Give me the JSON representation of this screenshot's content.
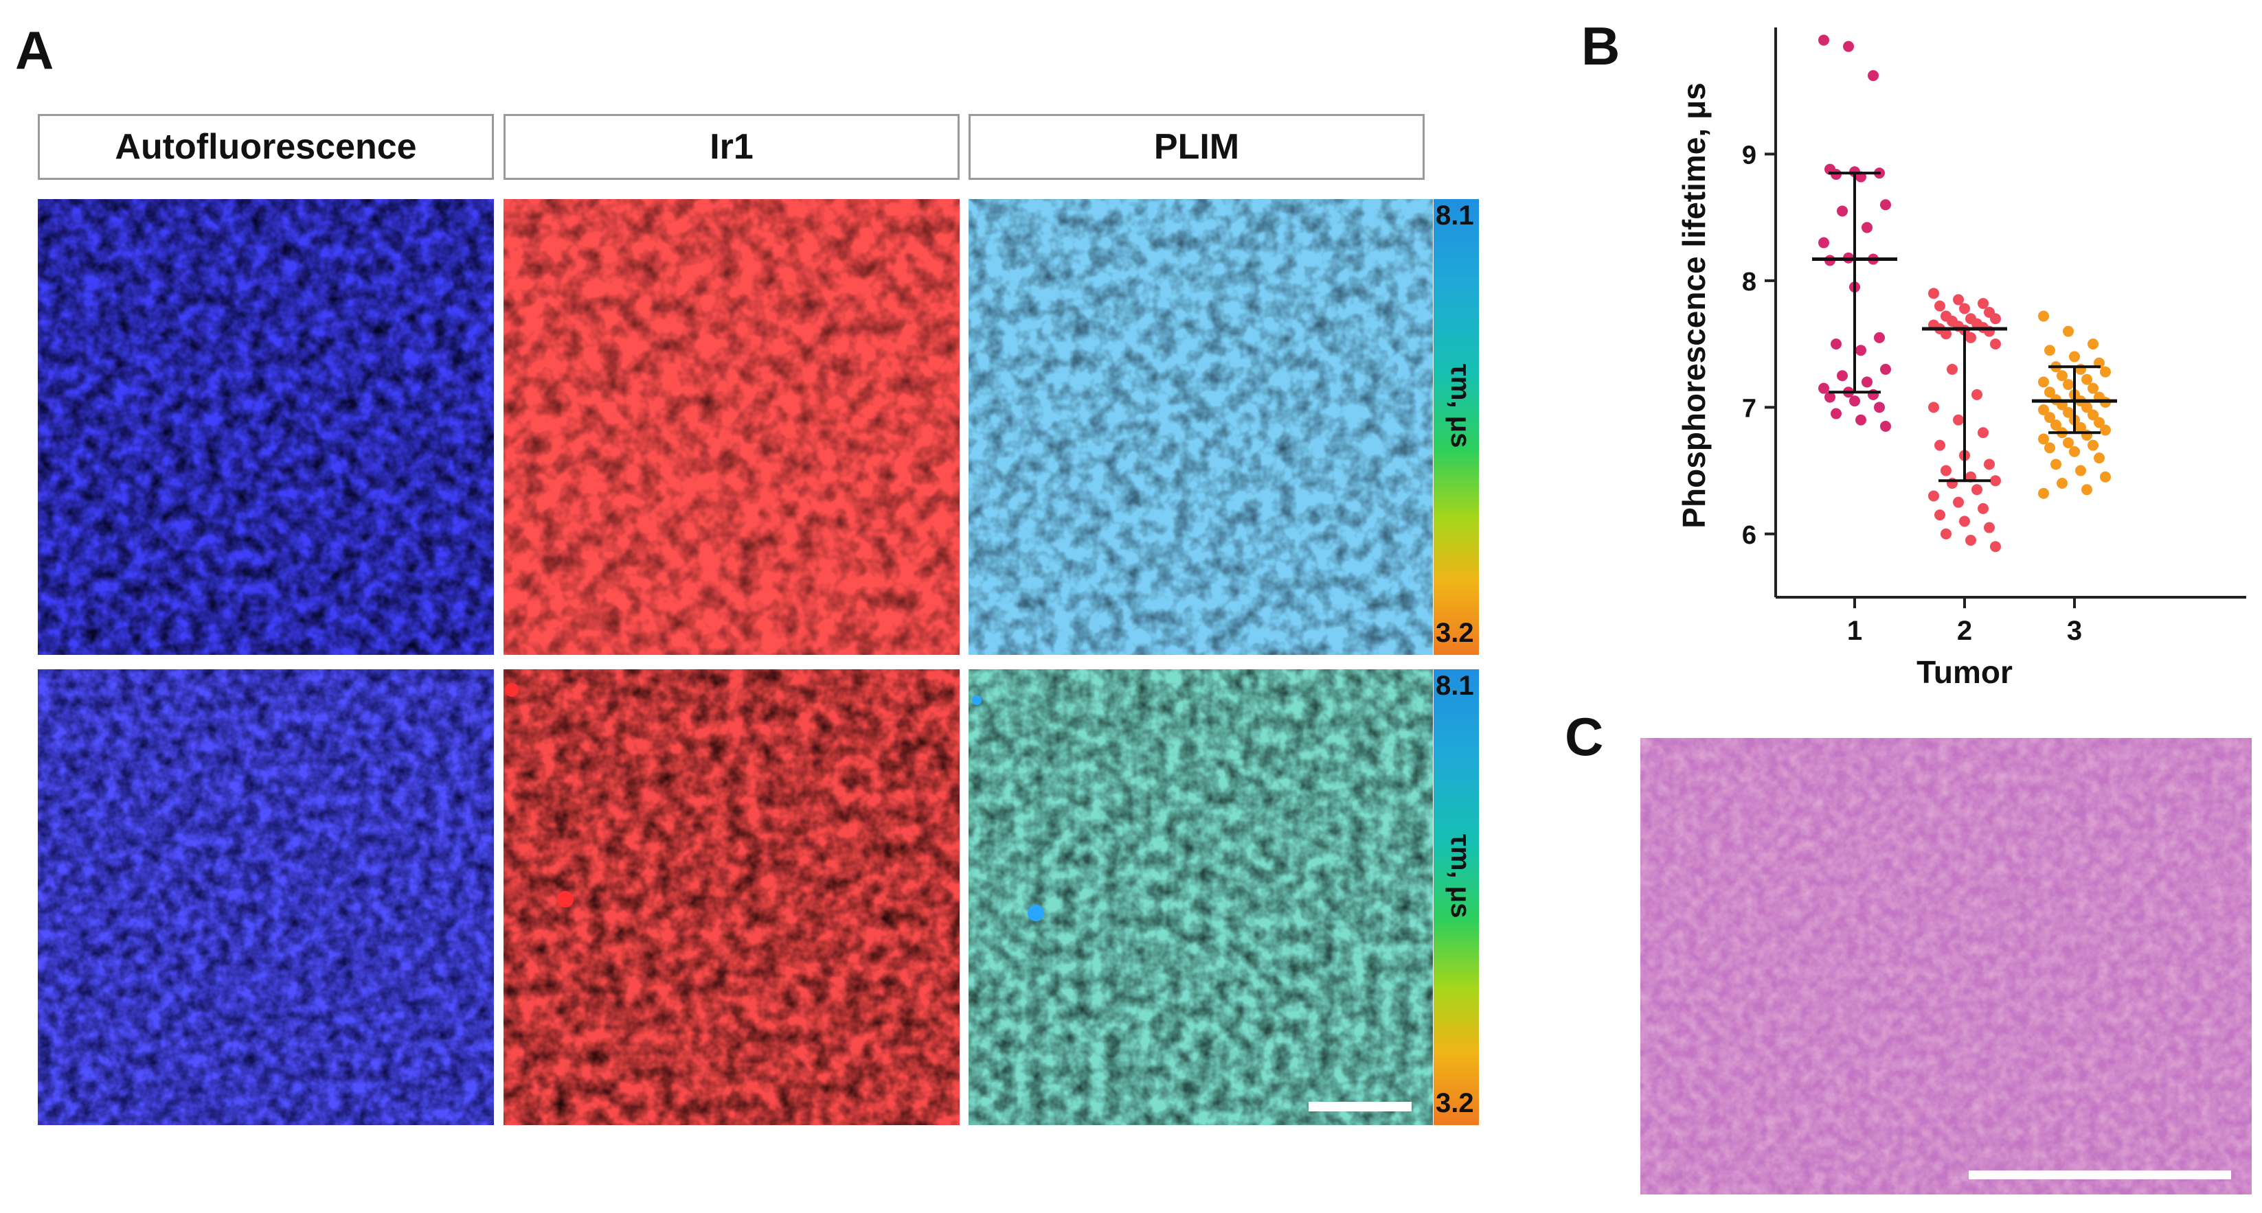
{
  "panels": {
    "a": "A",
    "b": "B",
    "c": "C"
  },
  "columns": {
    "autofluorescence": "Autofluorescence",
    "ir1": "Ir1",
    "plim": "PLIM"
  },
  "colorbar": {
    "top_label": "8.1",
    "bottom_label": "3.2",
    "axis_label": "τm, μs"
  },
  "colors": {
    "autofluorescence": "#1a1ad8",
    "ir1": "#e81c1c",
    "plim_top": "#3ba6df",
    "plim_bottom": "#37c8a8",
    "tumor1": "#d6286e",
    "tumor2": "#f04b5a",
    "tumor3": "#f59a1e",
    "he_stain": "#b45aa6"
  },
  "chart_data": {
    "type": "scatter",
    "xlabel": "Tumor",
    "ylabel": "Phosphorescence lifetime, μs",
    "categories": [
      "1",
      "2",
      "3"
    ],
    "ylim": [
      5.5,
      10
    ],
    "yticks": [
      6,
      7,
      8,
      9
    ],
    "series": [
      {
        "category": "1",
        "median": 8.17,
        "q1": 7.12,
        "q3": 8.85,
        "values": [
          9.9,
          9.85,
          9.62,
          8.88,
          8.86,
          8.85,
          8.84,
          8.82,
          8.6,
          8.55,
          8.42,
          8.3,
          8.18,
          8.17,
          8.16,
          7.95,
          7.55,
          7.5,
          7.45,
          7.3,
          7.25,
          7.2,
          7.15,
          7.12,
          7.1,
          7.08,
          7.05,
          7.0,
          6.95,
          6.9,
          6.85
        ]
      },
      {
        "category": "2",
        "median": 7.62,
        "q1": 6.42,
        "q3": 7.62,
        "values": [
          7.9,
          7.85,
          7.82,
          7.8,
          7.78,
          7.75,
          7.72,
          7.7,
          7.7,
          7.68,
          7.66,
          7.65,
          7.64,
          7.63,
          7.62,
          7.61,
          7.6,
          7.58,
          7.55,
          7.5,
          7.3,
          7.1,
          7.0,
          6.9,
          6.8,
          6.7,
          6.62,
          6.55,
          6.5,
          6.45,
          6.42,
          6.4,
          6.35,
          6.3,
          6.25,
          6.2,
          6.15,
          6.1,
          6.05,
          6.0,
          5.95,
          5.9
        ]
      },
      {
        "category": "3",
        "median": 7.05,
        "q1": 6.8,
        "q3": 7.32,
        "values": [
          7.72,
          7.6,
          7.5,
          7.45,
          7.4,
          7.35,
          7.32,
          7.3,
          7.28,
          7.25,
          7.22,
          7.2,
          7.18,
          7.15,
          7.12,
          7.1,
          7.08,
          7.06,
          7.05,
          7.04,
          7.02,
          7.0,
          6.98,
          6.96,
          6.94,
          6.92,
          6.9,
          6.88,
          6.86,
          6.84,
          6.82,
          6.8,
          6.78,
          6.75,
          6.72,
          6.7,
          6.68,
          6.65,
          6.6,
          6.55,
          6.5,
          6.45,
          6.4,
          6.35,
          6.32
        ]
      }
    ]
  }
}
